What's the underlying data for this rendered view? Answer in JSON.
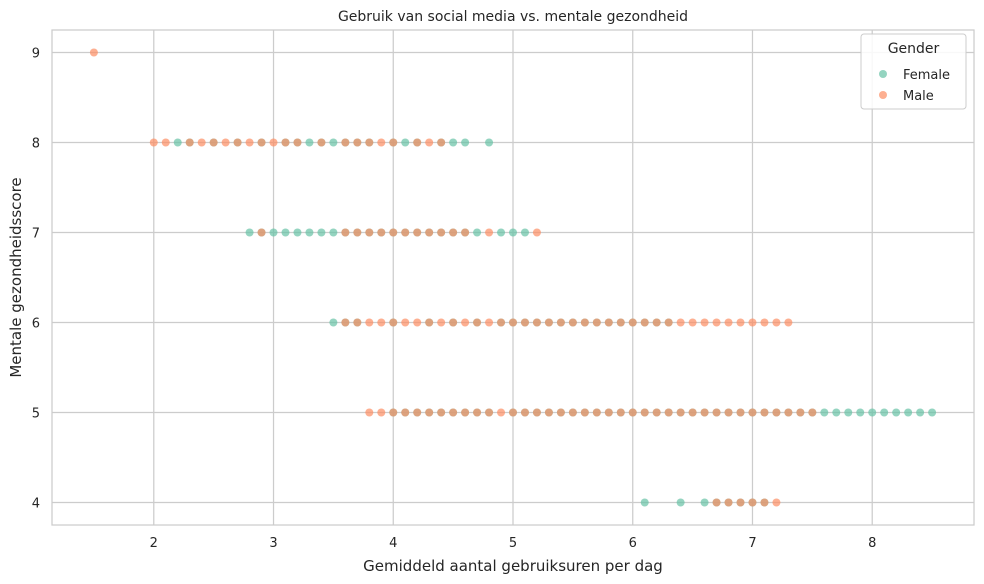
{
  "chart_data": {
    "type": "scatter",
    "title": "Gebruik van social media vs. mentale gezondheid",
    "xlabel": "Gemiddeld aantal gebruiksuren per dag",
    "ylabel": "Mentale gezondheidsscore",
    "xlim": [
      1.15,
      8.85
    ],
    "ylim": [
      3.75,
      9.25
    ],
    "xticks": [
      2,
      3,
      4,
      5,
      6,
      7,
      8
    ],
    "yticks": [
      4,
      5,
      6,
      7,
      8,
      9
    ],
    "grid": true,
    "legend": {
      "title": "Gender",
      "placement": "top-right"
    },
    "series": [
      {
        "name": "Female",
        "color": "#66c2a5",
        "points": [
          [
            2.2,
            8
          ],
          [
            2.3,
            8
          ],
          [
            2.5,
            8
          ],
          [
            2.7,
            8
          ],
          [
            2.9,
            8
          ],
          [
            3.1,
            8
          ],
          [
            3.2,
            8
          ],
          [
            3.3,
            8
          ],
          [
            3.4,
            8
          ],
          [
            3.5,
            8
          ],
          [
            3.6,
            8
          ],
          [
            3.7,
            8
          ],
          [
            3.8,
            8
          ],
          [
            4.0,
            8
          ],
          [
            4.1,
            8
          ],
          [
            4.2,
            8
          ],
          [
            4.4,
            8
          ],
          [
            4.5,
            8
          ],
          [
            4.6,
            8
          ],
          [
            4.8,
            8
          ],
          [
            2.8,
            7
          ],
          [
            2.9,
            7
          ],
          [
            3.0,
            7
          ],
          [
            3.1,
            7
          ],
          [
            3.2,
            7
          ],
          [
            3.3,
            7
          ],
          [
            3.4,
            7
          ],
          [
            3.5,
            7
          ],
          [
            3.6,
            7
          ],
          [
            3.7,
            7
          ],
          [
            3.8,
            7
          ],
          [
            3.9,
            7
          ],
          [
            4.0,
            7
          ],
          [
            4.1,
            7
          ],
          [
            4.2,
            7
          ],
          [
            4.3,
            7
          ],
          [
            4.4,
            7
          ],
          [
            4.5,
            7
          ],
          [
            4.6,
            7
          ],
          [
            4.7,
            7
          ],
          [
            4.9,
            7
          ],
          [
            5.0,
            7
          ],
          [
            5.1,
            7
          ],
          [
            3.5,
            6
          ],
          [
            3.6,
            6
          ],
          [
            3.7,
            6
          ],
          [
            4.0,
            6
          ],
          [
            4.3,
            6
          ],
          [
            4.5,
            6
          ],
          [
            4.7,
            6
          ],
          [
            4.9,
            6
          ],
          [
            5.0,
            6
          ],
          [
            5.1,
            6
          ],
          [
            5.2,
            6
          ],
          [
            5.3,
            6
          ],
          [
            5.4,
            6
          ],
          [
            5.5,
            6
          ],
          [
            5.6,
            6
          ],
          [
            5.7,
            6
          ],
          [
            5.8,
            6
          ],
          [
            5.9,
            6
          ],
          [
            6.0,
            6
          ],
          [
            6.1,
            6
          ],
          [
            6.2,
            6
          ],
          [
            6.3,
            6
          ],
          [
            4.0,
            5
          ],
          [
            4.1,
            5
          ],
          [
            4.2,
            5
          ],
          [
            4.3,
            5
          ],
          [
            4.4,
            5
          ],
          [
            4.5,
            5
          ],
          [
            4.6,
            5
          ],
          [
            4.7,
            5
          ],
          [
            4.8,
            5
          ],
          [
            5.0,
            5
          ],
          [
            5.1,
            5
          ],
          [
            5.2,
            5
          ],
          [
            5.3,
            5
          ],
          [
            5.4,
            5
          ],
          [
            5.5,
            5
          ],
          [
            5.6,
            5
          ],
          [
            5.7,
            5
          ],
          [
            5.8,
            5
          ],
          [
            5.9,
            5
          ],
          [
            6.0,
            5
          ],
          [
            6.1,
            5
          ],
          [
            6.2,
            5
          ],
          [
            6.3,
            5
          ],
          [
            6.4,
            5
          ],
          [
            6.5,
            5
          ],
          [
            6.6,
            5
          ],
          [
            6.7,
            5
          ],
          [
            6.8,
            5
          ],
          [
            6.9,
            5
          ],
          [
            7.0,
            5
          ],
          [
            7.1,
            5
          ],
          [
            7.2,
            5
          ],
          [
            7.3,
            5
          ],
          [
            7.4,
            5
          ],
          [
            7.5,
            5
          ],
          [
            7.6,
            5
          ],
          [
            7.7,
            5
          ],
          [
            7.8,
            5
          ],
          [
            7.9,
            5
          ],
          [
            8.0,
            5
          ],
          [
            8.1,
            5
          ],
          [
            8.2,
            5
          ],
          [
            8.3,
            5
          ],
          [
            8.4,
            5
          ],
          [
            8.5,
            5
          ],
          [
            6.1,
            4
          ],
          [
            6.4,
            4
          ],
          [
            6.6,
            4
          ],
          [
            6.7,
            4
          ],
          [
            6.8,
            4
          ],
          [
            6.9,
            4
          ],
          [
            7.0,
            4
          ],
          [
            7.1,
            4
          ]
        ]
      },
      {
        "name": "Male",
        "color": "#fc8d62",
        "points": [
          [
            1.5,
            9
          ],
          [
            2.0,
            8
          ],
          [
            2.1,
            8
          ],
          [
            2.3,
            8
          ],
          [
            2.4,
            8
          ],
          [
            2.5,
            8
          ],
          [
            2.6,
            8
          ],
          [
            2.7,
            8
          ],
          [
            2.8,
            8
          ],
          [
            2.9,
            8
          ],
          [
            3.0,
            8
          ],
          [
            3.1,
            8
          ],
          [
            3.2,
            8
          ],
          [
            3.4,
            8
          ],
          [
            3.6,
            8
          ],
          [
            3.7,
            8
          ],
          [
            3.8,
            8
          ],
          [
            3.9,
            8
          ],
          [
            4.0,
            8
          ],
          [
            4.2,
            8
          ],
          [
            4.3,
            8
          ],
          [
            4.4,
            8
          ],
          [
            2.9,
            7
          ],
          [
            3.6,
            7
          ],
          [
            3.7,
            7
          ],
          [
            3.8,
            7
          ],
          [
            3.9,
            7
          ],
          [
            4.0,
            7
          ],
          [
            4.1,
            7
          ],
          [
            4.2,
            7
          ],
          [
            4.3,
            7
          ],
          [
            4.4,
            7
          ],
          [
            4.5,
            7
          ],
          [
            4.6,
            7
          ],
          [
            4.8,
            7
          ],
          [
            5.2,
            7
          ],
          [
            3.6,
            6
          ],
          [
            3.7,
            6
          ],
          [
            3.8,
            6
          ],
          [
            3.9,
            6
          ],
          [
            4.0,
            6
          ],
          [
            4.1,
            6
          ],
          [
            4.2,
            6
          ],
          [
            4.3,
            6
          ],
          [
            4.4,
            6
          ],
          [
            4.5,
            6
          ],
          [
            4.6,
            6
          ],
          [
            4.7,
            6
          ],
          [
            4.8,
            6
          ],
          [
            4.9,
            6
          ],
          [
            5.0,
            6
          ],
          [
            5.1,
            6
          ],
          [
            5.2,
            6
          ],
          [
            5.3,
            6
          ],
          [
            5.4,
            6
          ],
          [
            5.5,
            6
          ],
          [
            5.6,
            6
          ],
          [
            5.7,
            6
          ],
          [
            5.8,
            6
          ],
          [
            5.9,
            6
          ],
          [
            6.0,
            6
          ],
          [
            6.1,
            6
          ],
          [
            6.2,
            6
          ],
          [
            6.3,
            6
          ],
          [
            6.4,
            6
          ],
          [
            6.5,
            6
          ],
          [
            6.6,
            6
          ],
          [
            6.7,
            6
          ],
          [
            6.8,
            6
          ],
          [
            6.9,
            6
          ],
          [
            7.0,
            6
          ],
          [
            7.1,
            6
          ],
          [
            7.2,
            6
          ],
          [
            7.3,
            6
          ],
          [
            3.8,
            5
          ],
          [
            3.9,
            5
          ],
          [
            4.0,
            5
          ],
          [
            4.1,
            5
          ],
          [
            4.2,
            5
          ],
          [
            4.3,
            5
          ],
          [
            4.4,
            5
          ],
          [
            4.5,
            5
          ],
          [
            4.6,
            5
          ],
          [
            4.7,
            5
          ],
          [
            4.8,
            5
          ],
          [
            4.9,
            5
          ],
          [
            5.0,
            5
          ],
          [
            5.1,
            5
          ],
          [
            5.2,
            5
          ],
          [
            5.3,
            5
          ],
          [
            5.4,
            5
          ],
          [
            5.5,
            5
          ],
          [
            5.6,
            5
          ],
          [
            5.7,
            5
          ],
          [
            5.8,
            5
          ],
          [
            5.9,
            5
          ],
          [
            6.0,
            5
          ],
          [
            6.1,
            5
          ],
          [
            6.2,
            5
          ],
          [
            6.3,
            5
          ],
          [
            6.4,
            5
          ],
          [
            6.5,
            5
          ],
          [
            6.6,
            5
          ],
          [
            6.7,
            5
          ],
          [
            6.8,
            5
          ],
          [
            6.9,
            5
          ],
          [
            7.0,
            5
          ],
          [
            7.1,
            5
          ],
          [
            7.2,
            5
          ],
          [
            7.3,
            5
          ],
          [
            7.4,
            5
          ],
          [
            7.5,
            5
          ],
          [
            6.7,
            4
          ],
          [
            6.8,
            4
          ],
          [
            6.9,
            4
          ],
          [
            7.0,
            4
          ],
          [
            7.1,
            4
          ],
          [
            7.2,
            4
          ]
        ]
      }
    ]
  }
}
